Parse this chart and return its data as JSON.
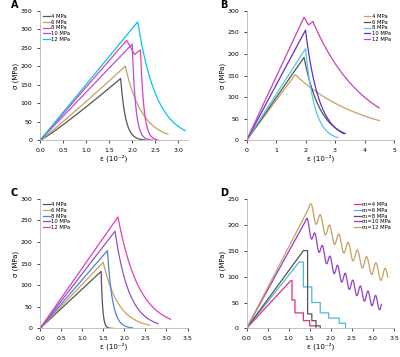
{
  "panels": [
    "A",
    "B",
    "C",
    "D"
  ],
  "panel_A": {
    "colors": [
      "#555555",
      "#c8a060",
      "#e040b0",
      "#b050e0",
      "#00c8e8"
    ],
    "labels": [
      "4 MPa",
      "6 MPa",
      "8 MPa",
      "10 MPa",
      "12 MPa"
    ],
    "xlim": [
      0.0,
      3.2
    ],
    "ylim": [
      0,
      350
    ],
    "xticks": [
      0.0,
      0.5,
      1.0,
      1.5,
      2.0,
      2.5,
      3.0
    ],
    "yticks": [
      0,
      50,
      100,
      150,
      200,
      250,
      300,
      350
    ]
  },
  "panel_B": {
    "colors": [
      "#c8a060",
      "#555555",
      "#50c8e8",
      "#6030d0",
      "#d040b0"
    ],
    "labels": [
      "4 MPa",
      "6 MPa",
      "8 MPa",
      "10 MPa",
      "12 MPa"
    ],
    "xlim": [
      0,
      5
    ],
    "ylim": [
      0,
      300
    ],
    "xticks": [
      0,
      1,
      2,
      3,
      4,
      5
    ],
    "yticks": [
      0,
      50,
      100,
      150,
      200,
      250,
      300
    ]
  },
  "panel_C": {
    "colors": [
      "#555555",
      "#c8a060",
      "#5080d8",
      "#9050c8",
      "#e040b0"
    ],
    "labels": [
      "4 MPa",
      "6 MPa",
      "8 MPa",
      "10 MPa",
      "12 MPa"
    ],
    "xlim": [
      0.0,
      3.5
    ],
    "ylim": [
      0,
      300
    ],
    "xticks": [
      0.0,
      0.5,
      1.0,
      1.5,
      2.0,
      2.5,
      3.0,
      3.5
    ],
    "yticks": [
      0,
      50,
      100,
      150,
      200,
      250,
      300
    ]
  },
  "panel_D": {
    "colors": [
      "#e03080",
      "#50b8d8",
      "#555555",
      "#9040c8",
      "#c8a060"
    ],
    "labels": [
      "σ₃=4 MPa",
      "σ₃=6 MPa",
      "σ₃=8 MPa",
      "σ₃=10 MPa",
      "σ₃=12 MPa"
    ],
    "xlim": [
      0,
      3.5
    ],
    "ylim": [
      0,
      250
    ],
    "xticks": [
      0,
      0.5,
      1.0,
      1.5,
      2.0,
      2.5,
      3.0,
      3.5
    ],
    "yticks": [
      0,
      50,
      100,
      150,
      200,
      250
    ]
  },
  "xlabel": "ε (10⁻²)",
  "ylabel": "σ (MPa)",
  "bg_color": "#ffffff",
  "linewidth": 0.9
}
